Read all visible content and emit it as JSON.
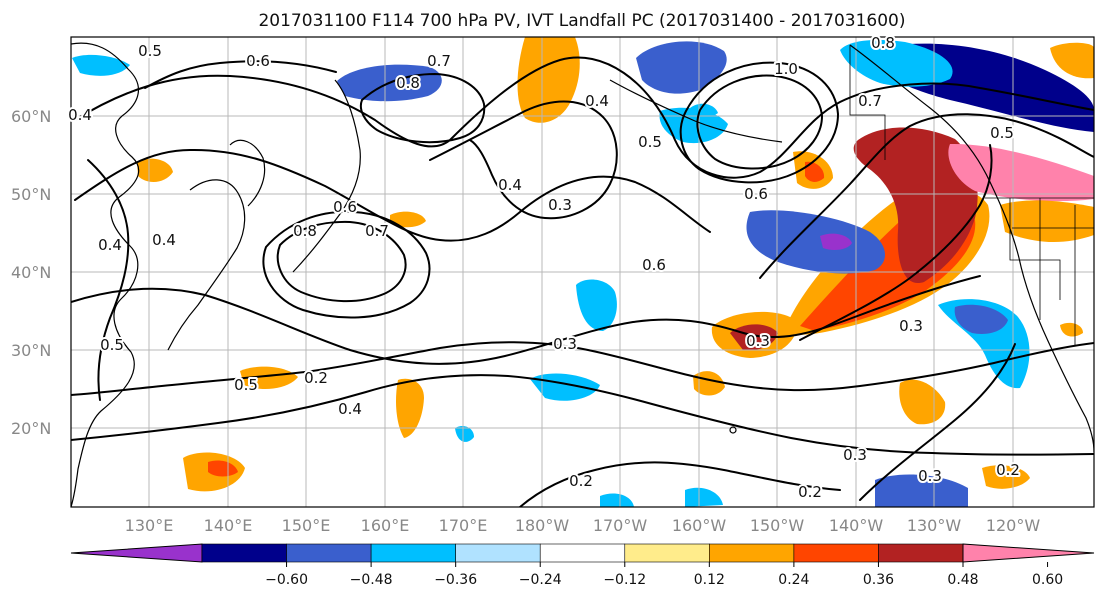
{
  "title": "2017031100 F114 700 hPa PV, IVT Landfall PC (2017031400 - 2017031600)",
  "map": {
    "lat_labels": [
      "60°N",
      "50°N",
      "40°N",
      "30°N",
      "20°N"
    ],
    "lon_labels": [
      "130°E",
      "140°E",
      "150°E",
      "160°E",
      "170°E",
      "180°W",
      "170°W",
      "160°W",
      "150°W",
      "140°W",
      "130°W",
      "120°W"
    ],
    "contour_labels": [
      "0.5",
      "0.6",
      "0.7",
      "0.8",
      "0.4",
      "0.3",
      "0.4",
      "0.6",
      "0.7",
      "0.8",
      "0.6",
      "0.4",
      "0.5",
      "0.5",
      "0.2",
      "0.4",
      "0.3",
      "0.3",
      "0.6",
      "1.0",
      "0.5",
      "0.8",
      "0.7",
      "0.5",
      "0.4",
      "0.3",
      "0.2",
      "0.3",
      "0.2",
      "0.2",
      "0.3",
      "0.4"
    ]
  },
  "colorbar": {
    "tick_labels": [
      "−0.60",
      "−0.48",
      "−0.36",
      "−0.24",
      "−0.12",
      "0.12",
      "0.24",
      "0.36",
      "0.48",
      "0.60"
    ],
    "tick_values": [
      -0.6,
      -0.48,
      -0.36,
      -0.24,
      -0.12,
      0.12,
      0.24,
      0.36,
      0.48,
      0.6
    ],
    "colors": [
      "#9932cc",
      "#00008b",
      "#3a5fcd",
      "#00bfff",
      "#b0e2ff",
      "#ffffff",
      "#ffec8b",
      "#ffa500",
      "#ff4500",
      "#b22222",
      "#ff82ab"
    ]
  }
}
